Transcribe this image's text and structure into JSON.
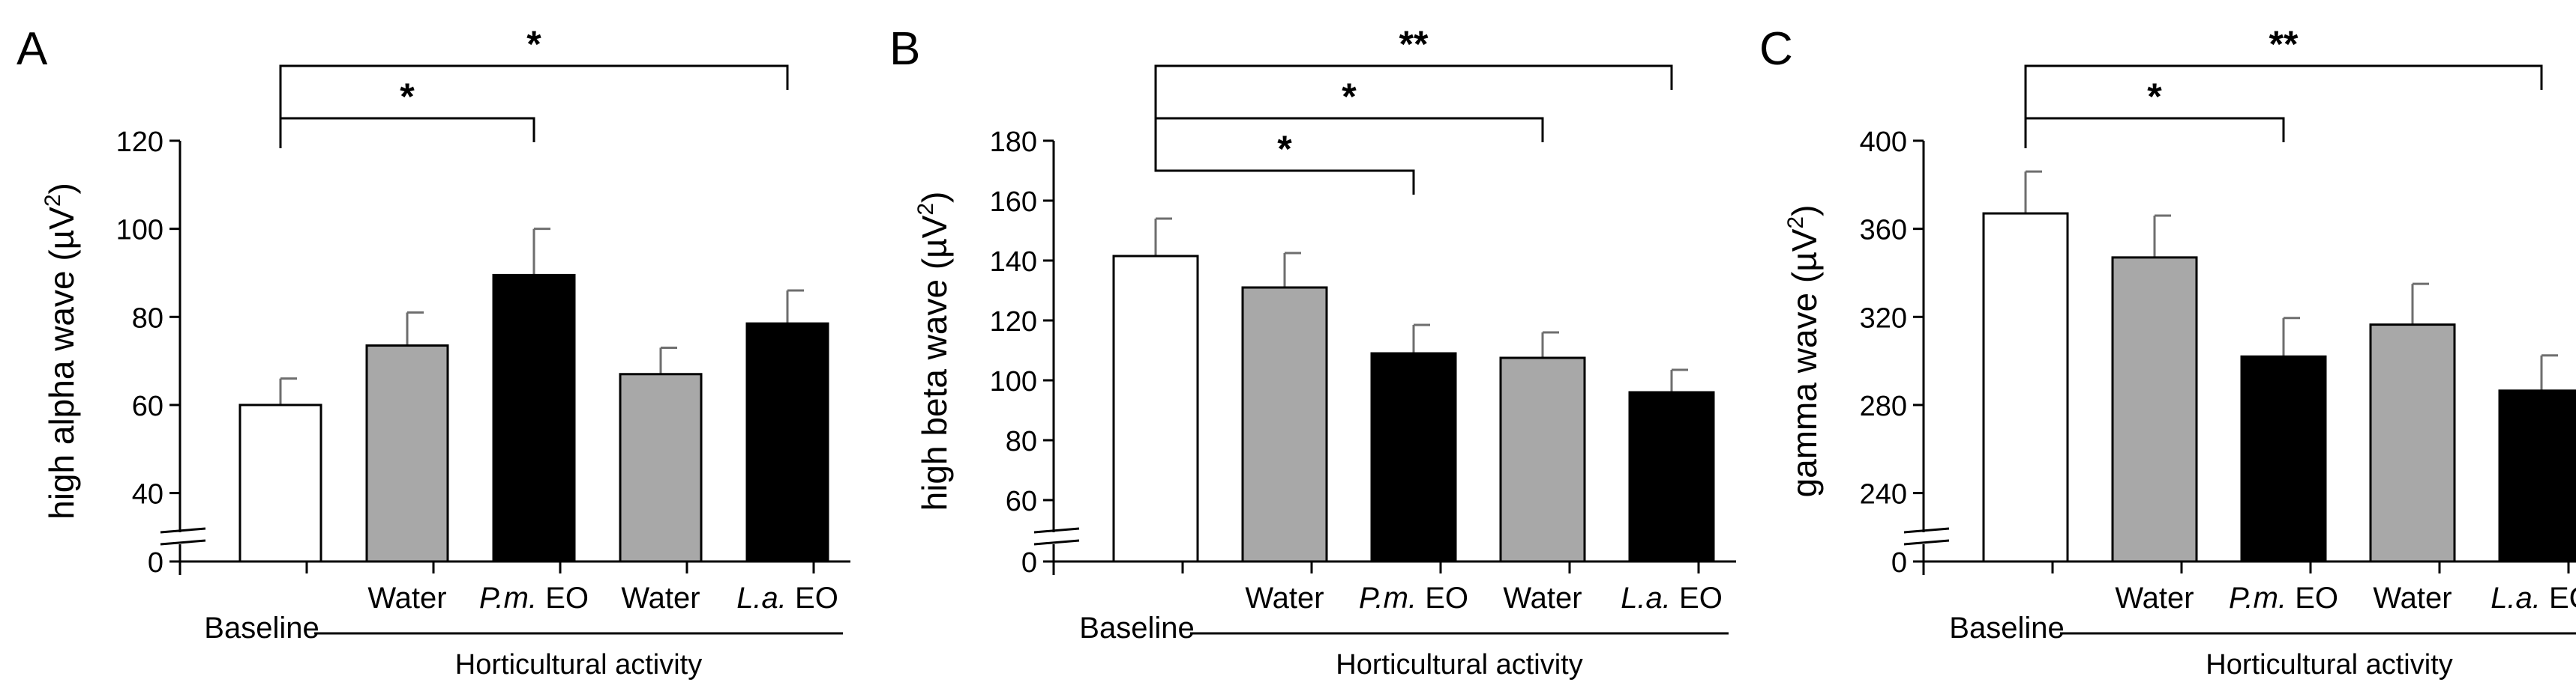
{
  "chart_data": [
    {
      "type": "bar",
      "panel_label": "A",
      "ylabel": "high alpha wave (µV²)",
      "ylabel_parts": [
        "high alpha wave (µV",
        "2",
        ")"
      ],
      "y_ticks": [
        40,
        60,
        80,
        100,
        120
      ],
      "y_zero_label": "0",
      "ylim": [
        35,
        120
      ],
      "y_break": true,
      "categories": [
        "Baseline",
        "Water",
        "P.m. EO",
        "Water",
        "L.a. EO"
      ],
      "values": [
        60,
        73.5,
        89.5,
        67,
        78.5
      ],
      "errors": [
        6,
        7.5,
        10.5,
        6,
        7.5
      ],
      "bar_colors": [
        "#ffffff",
        "#a8a8a8",
        "#000000",
        "#a8a8a8",
        "#000000"
      ],
      "group_label": "Horticultural activity",
      "significance": [
        {
          "from": 0,
          "to": 2,
          "label": "*"
        },
        {
          "from": 0,
          "to": 4,
          "label": "*"
        }
      ]
    },
    {
      "type": "bar",
      "panel_label": "B",
      "ylabel": "high beta wave (µV²)",
      "ylabel_parts": [
        "high beta wave (µV",
        "2",
        ")"
      ],
      "y_ticks": [
        60,
        80,
        100,
        120,
        140,
        160,
        180
      ],
      "y_zero_label": "0",
      "ylim": [
        55,
        180
      ],
      "y_break": true,
      "categories": [
        "Baseline",
        "Water",
        "P.m. EO",
        "Water",
        "L.a. EO"
      ],
      "values": [
        141.5,
        131,
        109,
        107.5,
        96
      ],
      "errors": [
        12.5,
        11.5,
        9.5,
        8.5,
        7.5
      ],
      "bar_colors": [
        "#ffffff",
        "#a8a8a8",
        "#000000",
        "#a8a8a8",
        "#000000"
      ],
      "group_label": "Horticultural activity",
      "significance": [
        {
          "from": 0,
          "to": 2,
          "label": "*"
        },
        {
          "from": 0,
          "to": 3,
          "label": "*"
        },
        {
          "from": 0,
          "to": 4,
          "label": "**"
        }
      ]
    },
    {
      "type": "bar",
      "panel_label": "C",
      "ylabel": "gamma wave (µV²)",
      "ylabel_parts": [
        "gamma wave (µV",
        "2",
        ")"
      ],
      "y_ticks": [
        240,
        280,
        320,
        360,
        400
      ],
      "y_zero_label": "0",
      "ylim": [
        230,
        400
      ],
      "y_break": true,
      "categories": [
        "Baseline",
        "Water",
        "P.m. EO",
        "Water",
        "L.a. EO"
      ],
      "values": [
        367,
        347,
        302,
        316.5,
        286.5
      ],
      "errors": [
        19,
        19,
        17.5,
        18.5,
        16
      ],
      "bar_colors": [
        "#ffffff",
        "#a8a8a8",
        "#000000",
        "#a8a8a8",
        "#000000"
      ],
      "group_label": "Horticultural activity",
      "significance": [
        {
          "from": 0,
          "to": 2,
          "label": "*"
        },
        {
          "from": 0,
          "to": 4,
          "label": "**"
        }
      ]
    }
  ]
}
